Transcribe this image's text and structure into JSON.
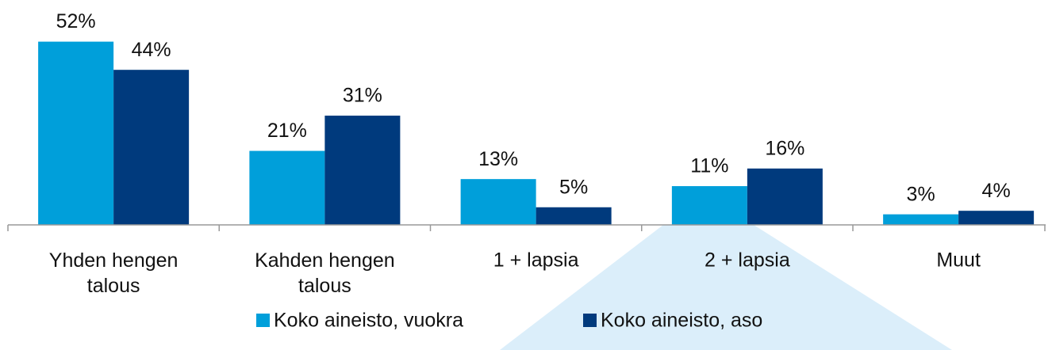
{
  "chart_data": {
    "type": "bar",
    "categories": [
      "Yhden hengen talous",
      "Kahden hengen talous",
      "1 + lapsia",
      "2 + lapsia",
      "Muut"
    ],
    "series": [
      {
        "name": "Koko aineisto, vuokra",
        "color": "#009fda",
        "values": [
          52,
          21,
          13,
          11,
          3
        ],
        "value_labels": [
          "52%",
          "21%",
          "13%",
          "11%",
          "3%"
        ]
      },
      {
        "name": "Koko aineisto, aso",
        "color": "#003a7d",
        "values": [
          44,
          31,
          5,
          16,
          4
        ],
        "value_labels": [
          "44%",
          "31%",
          "5%",
          "16%",
          "4%"
        ]
      }
    ],
    "ylim": [
      0,
      60
    ],
    "legend": "bottom"
  }
}
